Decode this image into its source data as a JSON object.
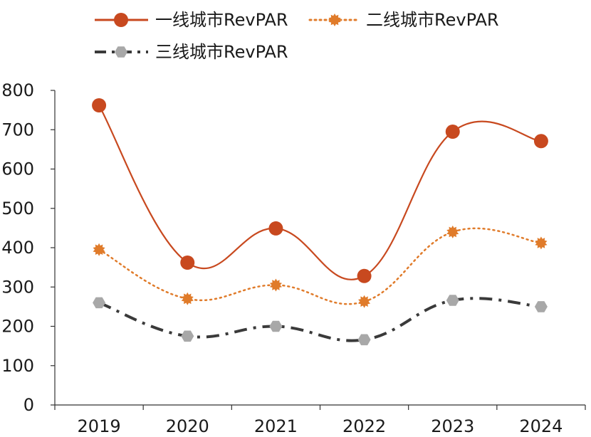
{
  "chart_data": {
    "type": "line",
    "title": "",
    "xlabel": "",
    "ylabel": "",
    "categories": [
      "2019",
      "2020",
      "2021",
      "2022",
      "2023",
      "2024"
    ],
    "ylim": [
      0,
      800
    ],
    "yticks": [
      0,
      100,
      200,
      300,
      400,
      500,
      600,
      700,
      800
    ],
    "grid": false,
    "legend_position": "top",
    "series": [
      {
        "name": "一线城市RevPAR",
        "values": [
          762,
          362,
          449,
          328,
          695,
          671
        ],
        "color": "#c8491f",
        "line_style": "solid",
        "marker": "circle"
      },
      {
        "name": "二线城市RevPAR",
        "values": [
          395,
          270,
          305,
          263,
          440,
          412
        ],
        "color": "#e07b2a",
        "line_style": "dotted",
        "marker": "star"
      },
      {
        "name": "三线城市RevPAR",
        "values": [
          260,
          175,
          200,
          166,
          266,
          250
        ],
        "color": "#3a3a3a",
        "marker_color": "#a8a8a8",
        "line_style": "dash-dot",
        "marker": "hexagon"
      }
    ]
  }
}
